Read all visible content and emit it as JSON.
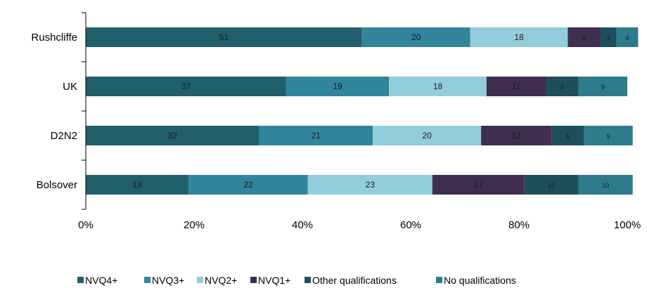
{
  "chart_data": {
    "type": "bar",
    "orientation": "horizontal",
    "stacked": true,
    "categories": [
      "Rushcliffe",
      "UK",
      "D2N2",
      "Bolsover"
    ],
    "series": [
      {
        "name": "NVQ4+",
        "color": "#215f6c",
        "values": [
          51,
          37,
          32,
          19
        ]
      },
      {
        "name": "NVQ3+",
        "color": "#31859c",
        "values": [
          20,
          19,
          21,
          22
        ]
      },
      {
        "name": "NVQ2+",
        "color": "#92cddc",
        "values": [
          18,
          18,
          20,
          23
        ]
      },
      {
        "name": "NVQ1+",
        "color": "#3f2e4f",
        "values": [
          6,
          11,
          13,
          17
        ]
      },
      {
        "name": "Other qualifications",
        "color": "#1f4f5b",
        "values": [
          3,
          6,
          6,
          10
        ]
      },
      {
        "name": "No qualifications",
        "color": "#2e7b8e",
        "values": [
          4,
          9,
          9,
          10
        ]
      }
    ],
    "xlim": [
      0,
      100
    ],
    "x_ticks": [
      "0%",
      "20%",
      "40%",
      "60%",
      "80%",
      "100%"
    ],
    "grid": false,
    "legend_position": "bottom"
  }
}
